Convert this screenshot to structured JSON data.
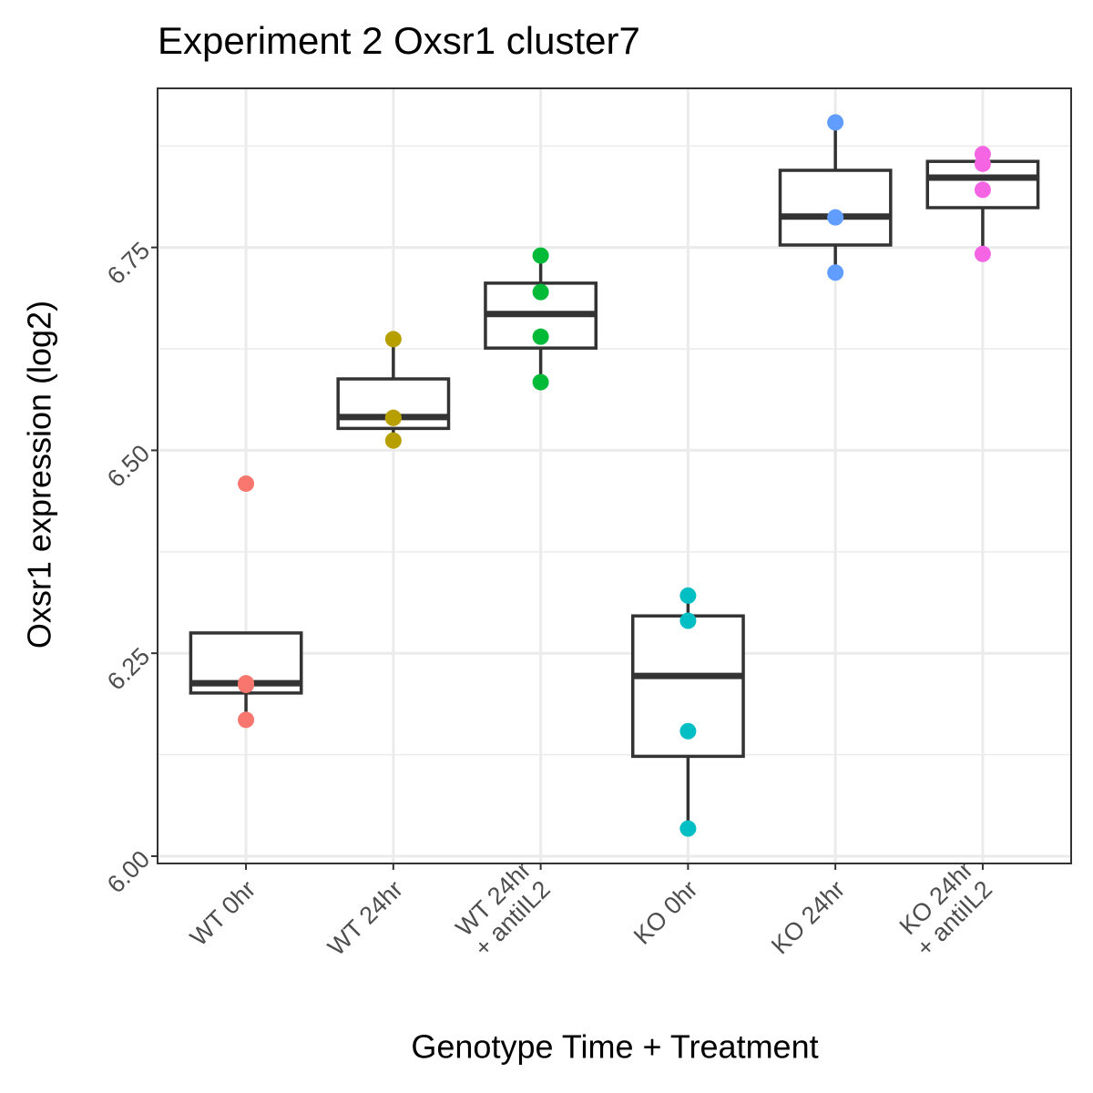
{
  "chart_data": {
    "type": "box",
    "title": "Experiment 2 Oxsr1 cluster7",
    "x_label": "Genotype Time + Treatment",
    "y_label": "Oxsr1 expression (log2)",
    "categories": [
      [
        "WT 0hr"
      ],
      [
        "WT 24hr"
      ],
      [
        "WT 24hr",
        "+ antiIL2"
      ],
      [
        "KO 0hr"
      ],
      [
        "KO 24hr"
      ],
      [
        "KO 24hr",
        "+ antiIL2"
      ]
    ],
    "groups": [
      {
        "color": "#F8766D",
        "points": [
          6.459,
          6.213,
          6.211,
          6.168
        ],
        "box": {
          "whisker_low": 6.168,
          "q1": 6.201,
          "median": 6.213,
          "q3": 6.275,
          "whisker_high": 6.275
        }
      },
      {
        "color": "#B79F00",
        "points": [
          6.637,
          6.54,
          6.54,
          6.512
        ],
        "box": {
          "whisker_low": 6.512,
          "q1": 6.527,
          "median": 6.541,
          "q3": 6.588,
          "whisker_high": 6.637
        }
      },
      {
        "color": "#00BA38",
        "points": [
          6.74,
          6.695,
          6.64,
          6.584
        ],
        "box": {
          "whisker_low": 6.584,
          "q1": 6.626,
          "median": 6.668,
          "q3": 6.706,
          "whisker_high": 6.74
        }
      },
      {
        "color": "#00BFC4",
        "points": [
          6.321,
          6.29,
          6.154,
          6.034
        ],
        "box": {
          "whisker_low": 6.034,
          "q1": 6.123,
          "median": 6.222,
          "q3": 6.296,
          "whisker_high": 6.321
        }
      },
      {
        "color": "#619CFF",
        "points": [
          6.904,
          6.787,
          6.719
        ],
        "box": {
          "whisker_low": 6.719,
          "q1": 6.753,
          "median": 6.788,
          "q3": 6.845,
          "whisker_high": 6.904
        }
      },
      {
        "color": "#F564E3",
        "points": [
          6.865,
          6.853,
          6.821,
          6.742
        ],
        "box": {
          "whisker_low": 6.742,
          "q1": 6.799,
          "median": 6.836,
          "q3": 6.856,
          "whisker_high": 6.865
        }
      }
    ],
    "ylim": [
      5.991,
      6.946
    ],
    "yticks": [
      {
        "value": 6.0,
        "label": "6.00"
      },
      {
        "value": 6.25,
        "label": "6.25"
      },
      {
        "value": 6.5,
        "label": "6.50"
      },
      {
        "value": 6.75,
        "label": "6.75"
      }
    ],
    "minor_yticks": [
      6.125,
      6.375,
      6.625,
      6.875
    ],
    "grid": true
  }
}
